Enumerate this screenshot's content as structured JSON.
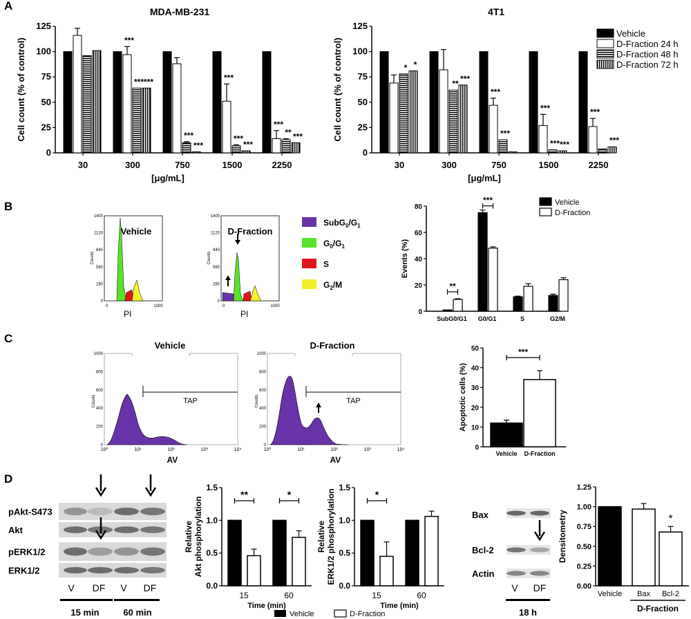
{
  "panels": {
    "A": "A",
    "B": "B",
    "C": "C",
    "D": "D"
  },
  "chart_data": [
    {
      "id": "A1",
      "type": "bar",
      "title": "MDA-MB-231",
      "xlabel": "[μg/mL]",
      "ylabel": "Cell count (% of control)",
      "ylim": [
        0,
        125
      ],
      "yticks": [
        0,
        25,
        50,
        75,
        100,
        125
      ],
      "categories": [
        "30",
        "300",
        "750",
        "1500",
        "2250"
      ],
      "series": [
        {
          "name": "Vehicle",
          "values": [
            100,
            100,
            100,
            100,
            100
          ],
          "errors": [
            0,
            0,
            0,
            0,
            0
          ],
          "sig": [
            "",
            "",
            "",
            "",
            ""
          ]
        },
        {
          "name": "D-Fraction 24 h",
          "values": [
            116,
            97,
            88,
            51,
            14
          ],
          "errors": [
            7,
            8,
            6,
            17,
            8
          ],
          "sig": [
            "",
            "***",
            "",
            "***",
            "***"
          ]
        },
        {
          "name": "D-Fraction 48 h",
          "values": [
            96,
            64,
            10,
            7,
            13
          ],
          "errors": [
            0,
            0,
            1,
            1,
            1
          ],
          "sig": [
            "",
            "***",
            "***",
            "***",
            "**"
          ]
        },
        {
          "name": "D-Fraction 72 h",
          "values": [
            101,
            64,
            1,
            2,
            10
          ],
          "errors": [
            0,
            0,
            0,
            0,
            0
          ],
          "sig": [
            "",
            "***",
            "***",
            "***",
            "***"
          ]
        }
      ]
    },
    {
      "id": "A2",
      "type": "bar",
      "title": "4T1",
      "xlabel": "[μg/mL]",
      "ylabel": "Cell count (% of control)",
      "ylim": [
        0,
        125
      ],
      "yticks": [
        0,
        25,
        50,
        75,
        100,
        125
      ],
      "categories": [
        "30",
        "300",
        "750",
        "1500",
        "2250"
      ],
      "series": [
        {
          "name": "Vehicle",
          "values": [
            100,
            100,
            100,
            100,
            100
          ],
          "errors": [
            0,
            0,
            0,
            0,
            0
          ],
          "sig": [
            "",
            "",
            "",
            "",
            ""
          ]
        },
        {
          "name": "D-Fraction 24 h",
          "values": [
            69,
            82,
            47,
            27,
            26
          ],
          "errors": [
            8,
            20,
            7,
            11,
            8
          ],
          "sig": [
            "",
            "",
            "***",
            "***",
            "***"
          ]
        },
        {
          "name": "D-Fraction 48 h",
          "values": [
            78,
            62,
            13,
            3,
            4
          ],
          "errors": [
            0,
            0,
            0,
            0,
            0
          ],
          "sig": [
            "*",
            "**",
            "***",
            "***",
            ""
          ]
        },
        {
          "name": "D-Fraction 72 h",
          "values": [
            81,
            67,
            1,
            2,
            6
          ],
          "errors": [
            0,
            0,
            0,
            0,
            0
          ],
          "sig": [
            "*",
            "***",
            "",
            "***",
            "***"
          ]
        }
      ],
      "legend": [
        "Vehicle",
        "D-Fraction 24 h",
        "D-Fraction 48 h",
        "D-Fraction 72 h"
      ],
      "legend_position": "top-right"
    },
    {
      "id": "B-bar",
      "type": "bar",
      "ylabel": "Events (%)",
      "ylim": [
        0,
        80
      ],
      "yticks": [
        0,
        20,
        40,
        60,
        80
      ],
      "categories": [
        "SubG0/G1",
        "G0/G1",
        "S",
        "G2/M"
      ],
      "series": [
        {
          "name": "Vehicle",
          "values": [
            1,
            75,
            11,
            12
          ],
          "errors": [
            0,
            2,
            0.5,
            1
          ]
        },
        {
          "name": "D-Fraction",
          "values": [
            9,
            48,
            19,
            24
          ],
          "errors": [
            0.5,
            1,
            2,
            1.5
          ]
        }
      ],
      "significance": [
        {
          "category": "SubG0/G1",
          "label": "**"
        },
        {
          "category": "G0/G1",
          "label": "***"
        }
      ],
      "legend": [
        "Vehicle",
        "D-Fraction"
      ],
      "legend_position": "top-right"
    },
    {
      "id": "C-bar",
      "type": "bar",
      "ylabel": "Apoptotic cells (%)",
      "ylim": [
        0,
        50
      ],
      "yticks": [
        0,
        10,
        20,
        30,
        40,
        50
      ],
      "categories": [
        "Vehicle",
        "D-Fraction"
      ],
      "values": [
        12,
        34
      ],
      "errors": [
        1.5,
        4.5
      ],
      "significance": "***"
    },
    {
      "id": "D-akt",
      "type": "bar",
      "ylabel": "Relative Akt phosphorylation",
      "xlabel": "Time (min)",
      "ylim": [
        0,
        1.5
      ],
      "yticks": [
        0.0,
        0.5,
        1.0,
        1.5
      ],
      "categories": [
        "15",
        "60"
      ],
      "series": [
        {
          "name": "Vehicle",
          "values": [
            1.0,
            1.0
          ],
          "errors": [
            0,
            0
          ]
        },
        {
          "name": "D-Fraction",
          "values": [
            0.46,
            0.74
          ],
          "errors": [
            0.1,
            0.1
          ]
        }
      ],
      "significance": [
        "**",
        "*"
      ]
    },
    {
      "id": "D-erk",
      "type": "bar",
      "ylabel": "Relative ERK1/2 phosphorylation",
      "xlabel": "Time (min)",
      "ylim": [
        0,
        1.5
      ],
      "yticks": [
        0.0,
        0.5,
        1.0,
        1.5
      ],
      "categories": [
        "15",
        "60"
      ],
      "series": [
        {
          "name": "Vehicle",
          "values": [
            1.0,
            1.0
          ],
          "errors": [
            0,
            0
          ]
        },
        {
          "name": "D-Fraction",
          "values": [
            0.45,
            1.06
          ],
          "errors": [
            0.22,
            0.08
          ]
        }
      ],
      "significance": [
        "*",
        ""
      ],
      "legend": [
        "Vehicle",
        "D-Fraction"
      ],
      "legend_position": "bottom"
    },
    {
      "id": "D-dens",
      "type": "bar",
      "ylabel": "Densitometry",
      "ylim": [
        0,
        1.25
      ],
      "yticks": [
        0.0,
        0.25,
        0.5,
        0.75,
        1.0,
        1.25
      ],
      "categories": [
        "Vehicle",
        "Bax",
        "Bcl-2"
      ],
      "group_label": "D-Fraction",
      "values": [
        1.0,
        0.97,
        0.68
      ],
      "errors": [
        0,
        0.07,
        0.07
      ],
      "significance": [
        "",
        "",
        "*"
      ]
    }
  ],
  "flow": {
    "legend": [
      {
        "label": "SubG0/G1",
        "main": "SubG",
        "subs": [
          "0",
          "/G",
          "1"
        ],
        "color": "#6a32a8"
      },
      {
        "label": "G0/G1",
        "main": "G",
        "subs": [
          "0",
          "/G",
          "1"
        ],
        "color": "#58e22a"
      },
      {
        "label": "S",
        "main": "S",
        "subs": [],
        "color": "#e2161a"
      },
      {
        "label": "G2/M",
        "main": "G",
        "subs": [
          "2",
          "/M"
        ],
        "color": "#f5f02a"
      }
    ],
    "b_titles": [
      "Vehicle",
      "D-Fraction"
    ],
    "b_yticks": [
      "0",
      "280",
      "560",
      "840",
      "1120",
      "1400"
    ],
    "b_xticks": [
      "0",
      "1000"
    ],
    "b_ylabel": "Counts",
    "b_xlabel": "PI",
    "c_titles": [
      "Vehicle",
      "D-Fraction"
    ],
    "c_yticks": [
      "0",
      "200",
      "400",
      "600",
      "800",
      "1000"
    ],
    "c_xticks": [
      "10⁰",
      "10¹",
      "10²",
      "10³",
      "10⁴"
    ],
    "c_xlabel": "AV",
    "c_ylabel": "Counts",
    "gate": "TAP"
  },
  "blots": {
    "left_labels": [
      "pAkt-S473",
      "Akt",
      "pERK1/2",
      "ERK1/2"
    ],
    "lanes": [
      "V",
      "DF",
      "V",
      "DF"
    ],
    "times": [
      "15 min",
      "60 min"
    ],
    "right_labels": [
      "Bax",
      "Bcl-2",
      "Actin"
    ],
    "right_lanes": [
      "V",
      "DF"
    ],
    "right_time": "18 h"
  }
}
